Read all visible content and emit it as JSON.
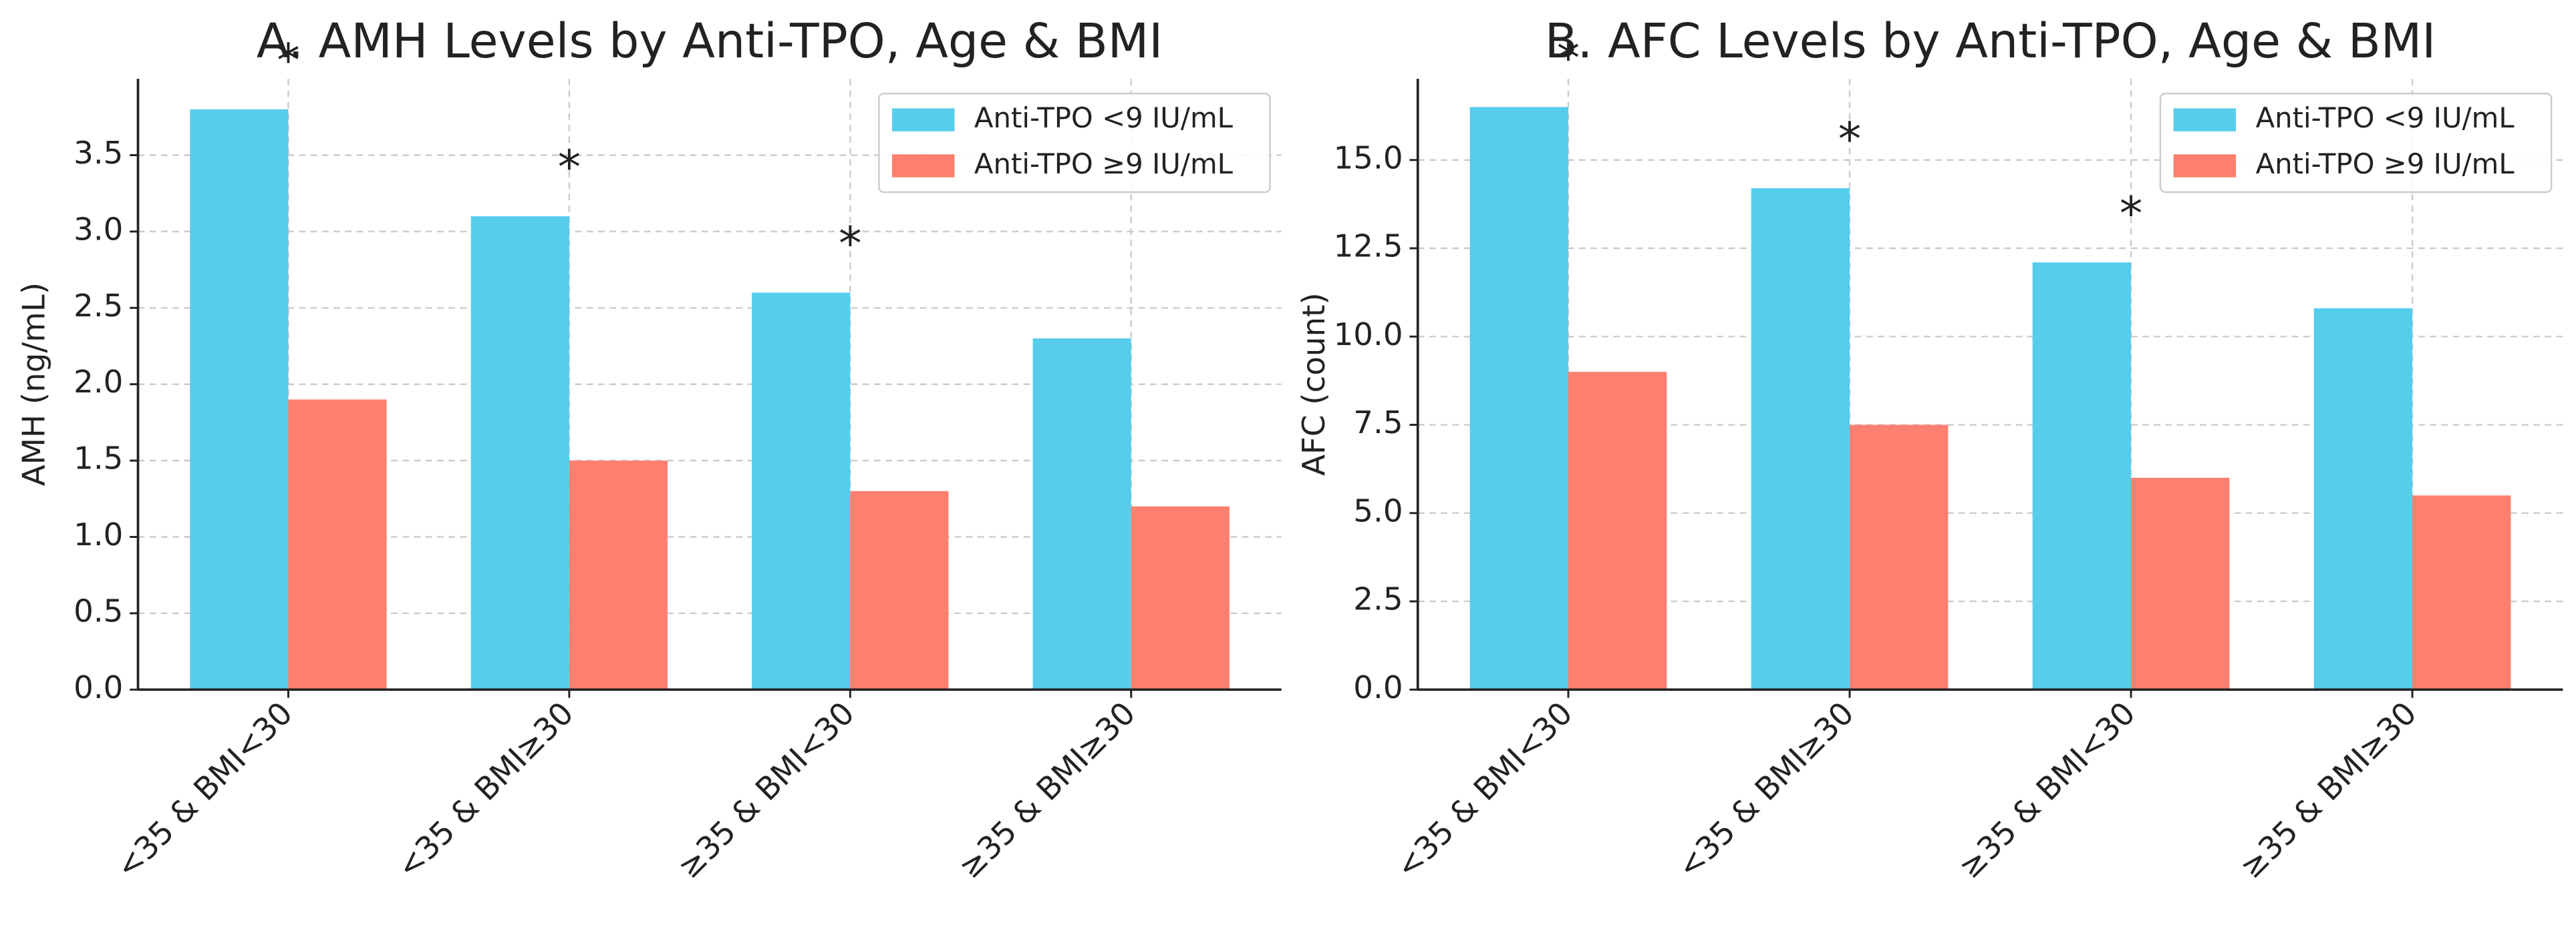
{
  "chart_data": [
    {
      "type": "bar",
      "title": "A. AMH Levels by Anti-TPO, Age & BMI",
      "y_label": "AMH (ng/mL)",
      "categories": [
        "<35 & BMI<30",
        "<35 & BMI≥30",
        "≥35 & BMI<30",
        "≥35 & BMI≥30"
      ],
      "series": [
        {
          "name": "Anti-TPO <9 IU/mL",
          "color": "#56cdeb",
          "values": [
            3.8,
            3.1,
            2.6,
            2.3
          ]
        },
        {
          "name": "Anti-TPO ≥9 IU/mL",
          "color": "#fc7f6f",
          "values": [
            1.9,
            1.5,
            1.3,
            1.2
          ]
        }
      ],
      "annotations": [
        "*",
        "*",
        "*"
      ],
      "ylim": [
        0,
        4.0
      ],
      "yticks": [
        {
          "value": 0,
          "label": "0.0"
        },
        0.5,
        {
          "value": 1,
          "label": "1.0"
        },
        1.5,
        {
          "value": 2,
          "label": "2.0"
        },
        2.5,
        {
          "value": 3,
          "label": "3.0"
        },
        3.5
      ],
      "grid": true,
      "legend": "upper right"
    },
    {
      "type": "bar",
      "title": "B. AFC Levels by Anti-TPO, Age & BMI",
      "y_label": "AFC (count)",
      "categories": [
        "<35 & BMI<30",
        "<35 & BMI≥30",
        "≥35 & BMI<30",
        "≥35 & BMI≥30"
      ],
      "series": [
        {
          "name": "Anti-TPO <9 IU/mL",
          "color": "#56cdeb",
          "values": [
            16.5,
            14.2,
            12.1,
            10.8
          ]
        },
        {
          "name": "Anti-TPO ≥9 IU/mL",
          "color": "#fc7f6f",
          "values": [
            9.0,
            7.5,
            6.0,
            5.5
          ]
        }
      ],
      "annotations": [
        "*",
        "*",
        "*"
      ],
      "ylim": [
        0,
        17.3
      ],
      "yticks": [
        {
          "value": 0,
          "label": "0.0"
        },
        2.5,
        {
          "value": 5,
          "label": "5.0"
        },
        7.5,
        {
          "value": 10,
          "label": "10.0"
        },
        12.5,
        {
          "value": 15,
          "label": "15.0"
        }
      ],
      "grid": true,
      "legend": "upper right"
    }
  ]
}
